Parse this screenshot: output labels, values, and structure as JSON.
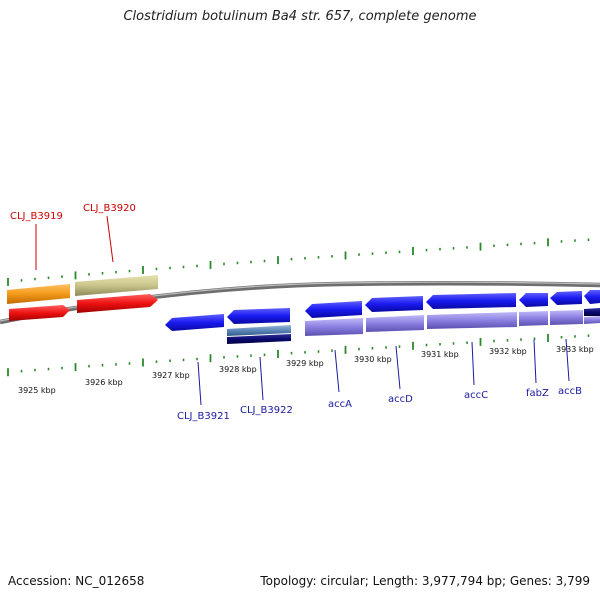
{
  "title": "Clostridium botulinum Ba4 str. 657, complete genome",
  "footer": {
    "accession": "Accession: NC_012658",
    "summary": "Topology: circular; Length: 3,977,794 bp; Genes: 3,799"
  },
  "colors": {
    "tick": "#2a8a2a",
    "backbone": "#808080",
    "label_top": "#cc0000",
    "label_bottom": "#1a1aa0",
    "gene_orange": "#f39a1a",
    "gene_khaki": "#c8c48a",
    "gene_red": "#ee1111",
    "gene_blue": "#1a1af0",
    "gene_lavender": "#8a7fe0",
    "gene_steel": "#5a86b8",
    "gene_navy": "#0a0a70"
  },
  "scale_labels": [
    "3925 kbp",
    "3926 kbp",
    "3927 kbp",
    "3928 kbp",
    "3929 kbp",
    "3930 kbp",
    "3931 kbp",
    "3932 kbp",
    "3933 kbp"
  ],
  "top_gene_labels": [
    "CLJ_B3919",
    "CLJ_B3920"
  ],
  "bottom_gene_labels": [
    "CLJ_B3921",
    "CLJ_B3922",
    "accA",
    "accD",
    "accC",
    "fabZ",
    "accB"
  ]
}
